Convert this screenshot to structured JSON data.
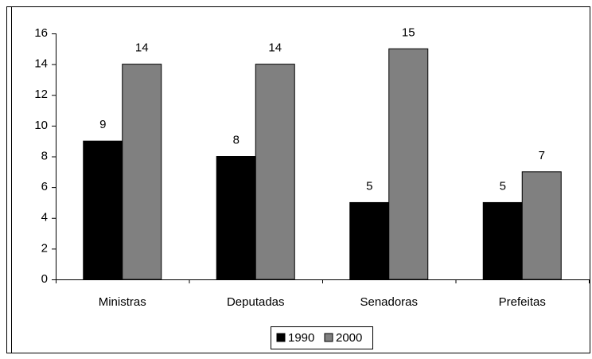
{
  "chart_data": {
    "type": "bar",
    "categories": [
      "Ministras",
      "Deputadas",
      "Senadoras",
      "Prefeitas"
    ],
    "series": [
      {
        "name": "1990",
        "color": "#000000",
        "values": [
          9,
          8,
          5,
          5
        ]
      },
      {
        "name": "2000",
        "color": "#808080",
        "values": [
          14,
          14,
          15,
          7
        ]
      }
    ],
    "ylim": [
      0,
      16
    ],
    "yticks": [
      0,
      2,
      4,
      6,
      8,
      10,
      12,
      14,
      16
    ],
    "grid": false,
    "legend": "bottom"
  }
}
